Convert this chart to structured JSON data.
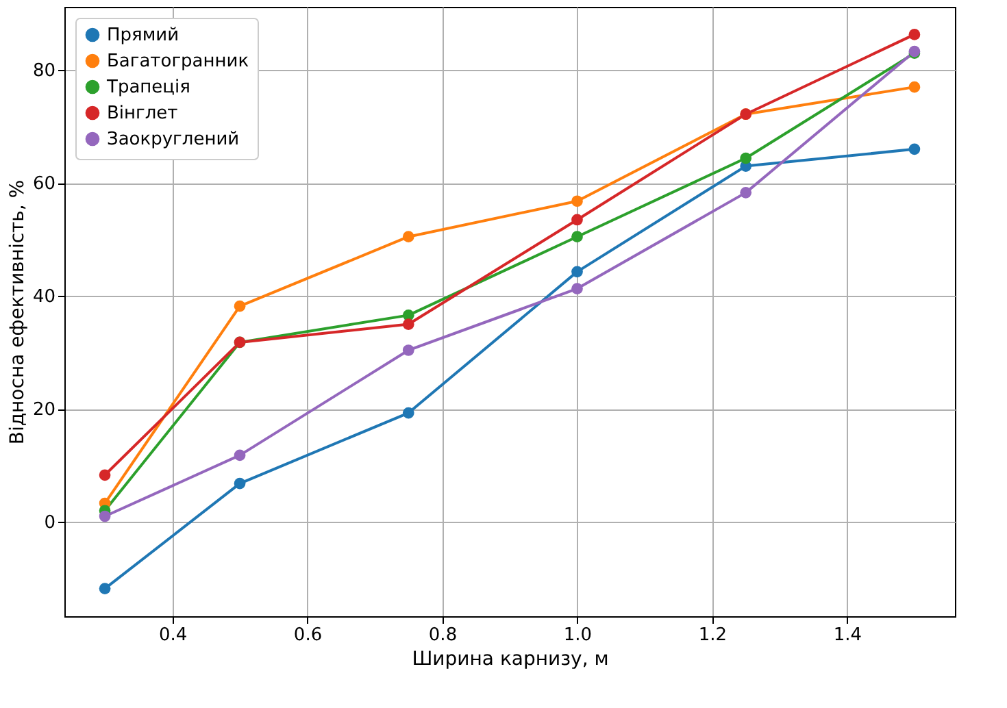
{
  "chart_data": {
    "type": "line",
    "xlabel": "Ширина карнизу, м",
    "ylabel": "Відносна ефективність, %",
    "x": [
      0.3,
      0.5,
      0.75,
      1.0,
      1.25,
      1.5
    ],
    "series": [
      {
        "name": "Прямий",
        "color": "#1f77b4",
        "values": [
          -11.8,
          6.8,
          19.3,
          44.3,
          63,
          66
        ]
      },
      {
        "name": "Багатогранник",
        "color": "#ff7f0e",
        "values": [
          3.3,
          38.2,
          50.5,
          56.8,
          72.2,
          77
        ]
      },
      {
        "name": "Трапеція",
        "color": "#2ca02c",
        "values": [
          2,
          31.8,
          36.6,
          50.5,
          64.4,
          83
        ]
      },
      {
        "name": "Вінглет",
        "color": "#d62728",
        "values": [
          8.3,
          31.8,
          35,
          53.5,
          72.2,
          86.3
        ]
      },
      {
        "name": "Заокруглений",
        "color": "#9467bd",
        "values": [
          1,
          11.8,
          30.4,
          41.3,
          58.3,
          83.3
        ]
      }
    ],
    "xlim": [
      0.24,
      1.56
    ],
    "ylim": [
      -16.7,
      91.2
    ],
    "xticks": [
      0.4,
      0.6,
      0.8,
      {
        "value": 1.0,
        "label": "1.0"
      },
      1.2,
      1.4
    ],
    "yticks": [
      0,
      20,
      40,
      60,
      80
    ],
    "grid": true,
    "legend": "top left",
    "marker": "circle",
    "line_style": "solid"
  }
}
